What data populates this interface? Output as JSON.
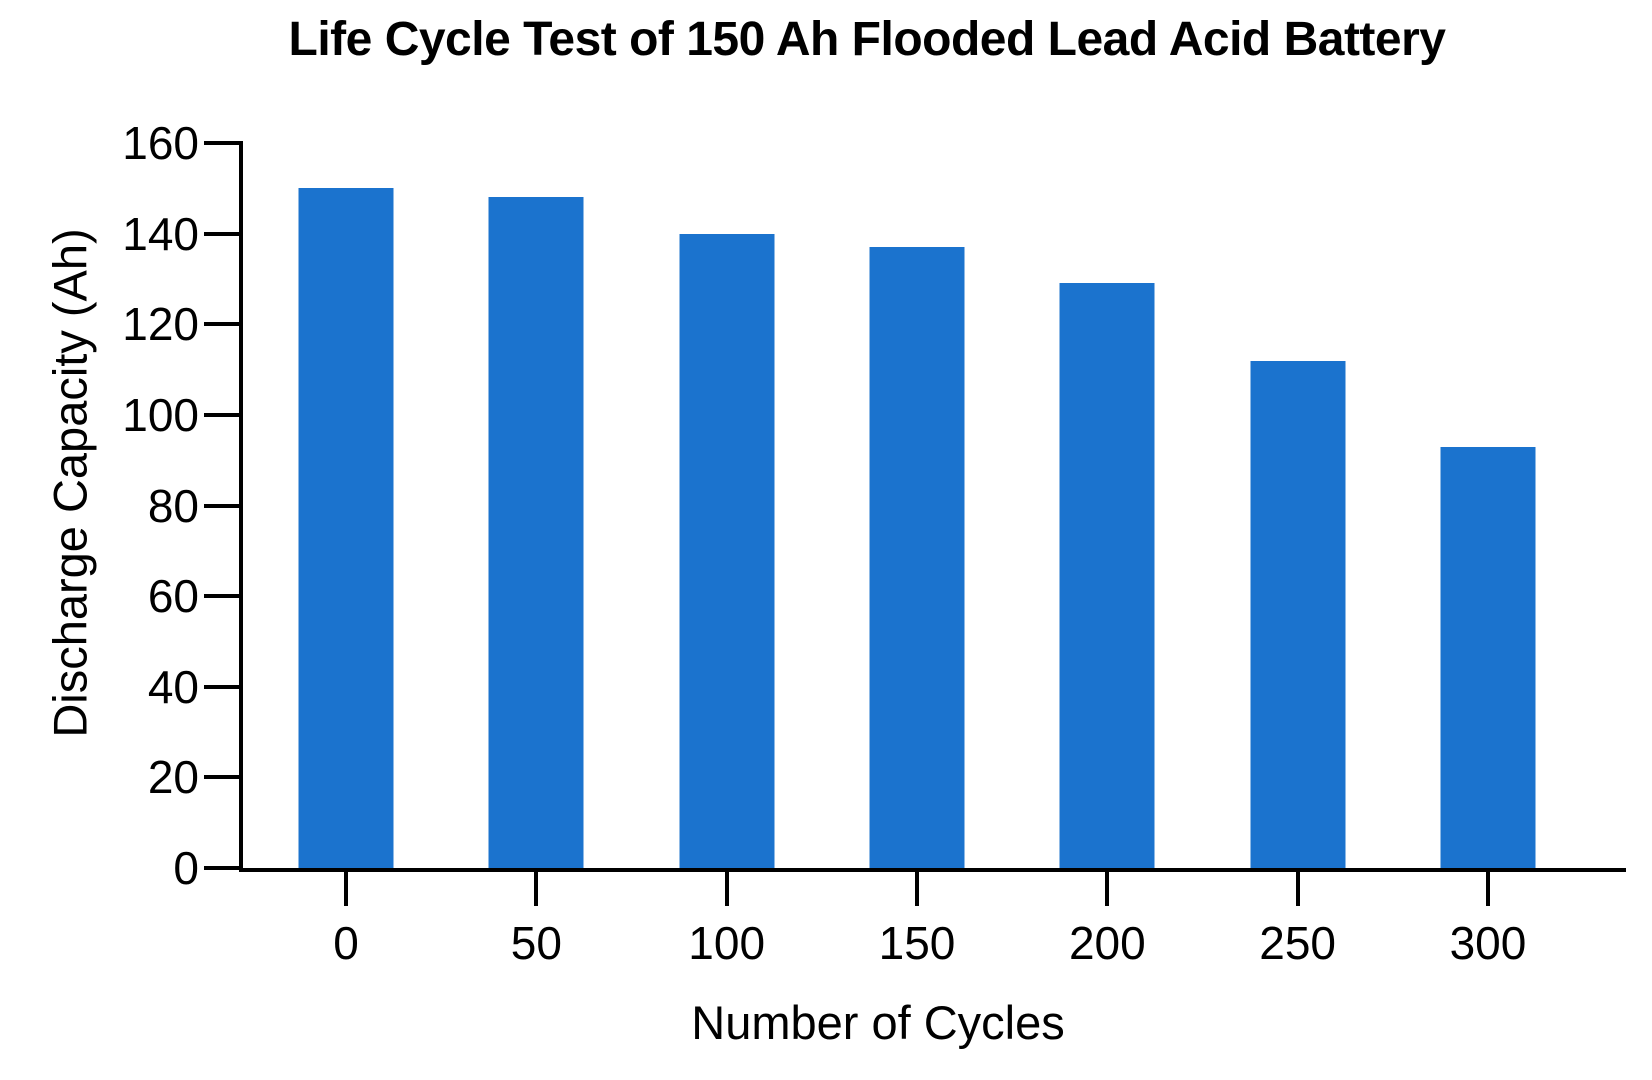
{
  "chart_data": {
    "type": "bar",
    "title": "Life Cycle Test of 150 Ah Flooded Lead Acid Battery",
    "xlabel": "Number of Cycles",
    "ylabel": "Discharge Capacity (Ah)",
    "categories": [
      "0",
      "50",
      "100",
      "150",
      "200",
      "250",
      "300"
    ],
    "values": [
      150,
      148,
      140,
      137,
      129,
      112,
      93
    ],
    "series_name": "Discharge Capacity (Ah)",
    "ylim": [
      0,
      160
    ],
    "yticks": [
      0,
      20,
      40,
      60,
      80,
      100,
      120,
      140,
      160
    ],
    "grid": false,
    "legend": false,
    "bar_color": "#1b73ce",
    "axis_color": "#000000",
    "text_color": "#000000",
    "background_color": "#ffffff"
  }
}
